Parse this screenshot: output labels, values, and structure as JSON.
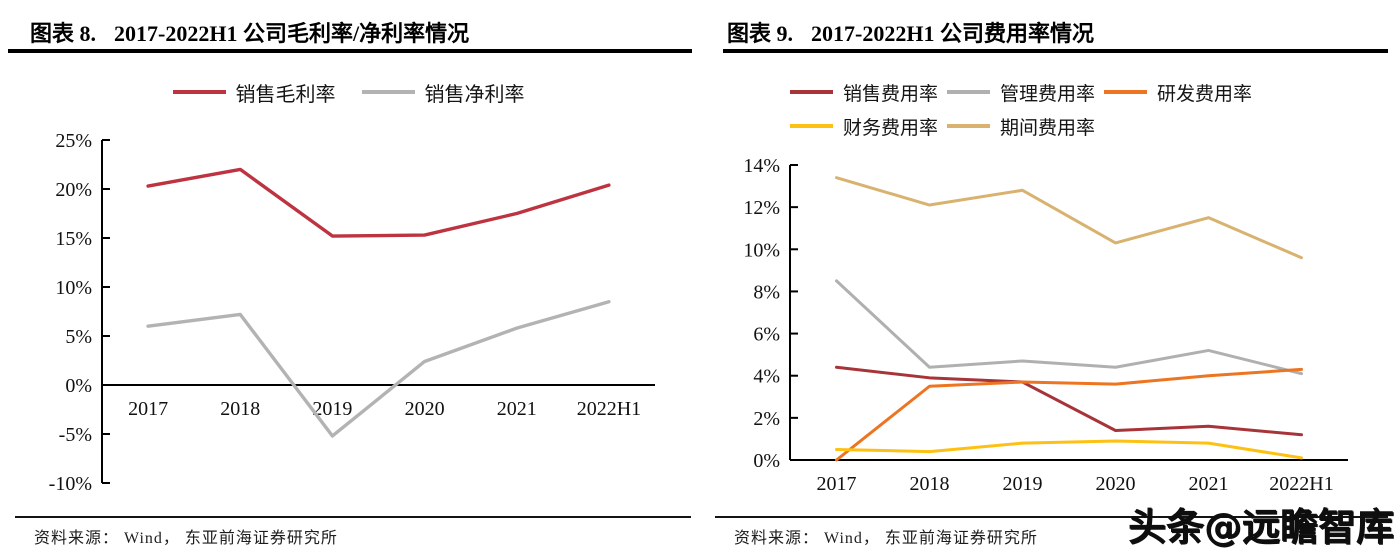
{
  "watermark": "头条@远瞻智库",
  "figures": [
    {
      "title_prefix": "图表 8.",
      "title": "2017-2022H1 公司毛利率/净利率情况",
      "source": "资料来源： Wind， 东亚前海证券研究所",
      "chart_data": {
        "type": "line",
        "categories": [
          "2017",
          "2018",
          "2019",
          "2020",
          "2021",
          "2022H1"
        ],
        "series": [
          {
            "name": "销售毛利率",
            "color": "#bd3440",
            "values": [
              20.3,
              22.0,
              15.2,
              15.3,
              17.5,
              20.4
            ]
          },
          {
            "name": "销售净利率",
            "color": "#b3b3b3",
            "values": [
              6.0,
              7.2,
              -5.2,
              2.4,
              5.8,
              8.5
            ]
          }
        ],
        "xlabel": "",
        "ylabel": "",
        "ylim": [
          -10,
          25
        ],
        "ytick_step": 5,
        "ytick_suffix": "%",
        "grid": false,
        "legend_position": "top"
      }
    },
    {
      "title_prefix": "图表 9.",
      "title": "2017-2022H1 公司费用率情况",
      "source": "资料来源： Wind， 东亚前海证券研究所",
      "chart_data": {
        "type": "line",
        "categories": [
          "2017",
          "2018",
          "2019",
          "2020",
          "2021",
          "2022H1"
        ],
        "series": [
          {
            "name": "销售费用率",
            "color": "#a73439",
            "values": [
              4.4,
              3.9,
              3.7,
              1.4,
              1.6,
              1.2
            ]
          },
          {
            "name": "管理费用率",
            "color": "#b0b0b0",
            "values": [
              8.5,
              4.4,
              4.7,
              4.4,
              5.2,
              4.1
            ]
          },
          {
            "name": "研发费用率",
            "color": "#ed7420",
            "values": [
              0.0,
              3.5,
              3.7,
              3.6,
              4.0,
              4.3
            ]
          },
          {
            "name": "财务费用率",
            "color": "#fdc113",
            "values": [
              0.5,
              0.4,
              0.8,
              0.9,
              0.8,
              0.1
            ]
          },
          {
            "name": "期间费用率",
            "color": "#d8b26e",
            "values": [
              13.4,
              12.1,
              12.8,
              10.3,
              11.5,
              9.6
            ]
          }
        ],
        "xlabel": "",
        "ylabel": "",
        "ylim": [
          0,
          14
        ],
        "ytick_step": 2,
        "ytick_suffix": "%",
        "grid": false,
        "legend_position": "top"
      }
    }
  ]
}
